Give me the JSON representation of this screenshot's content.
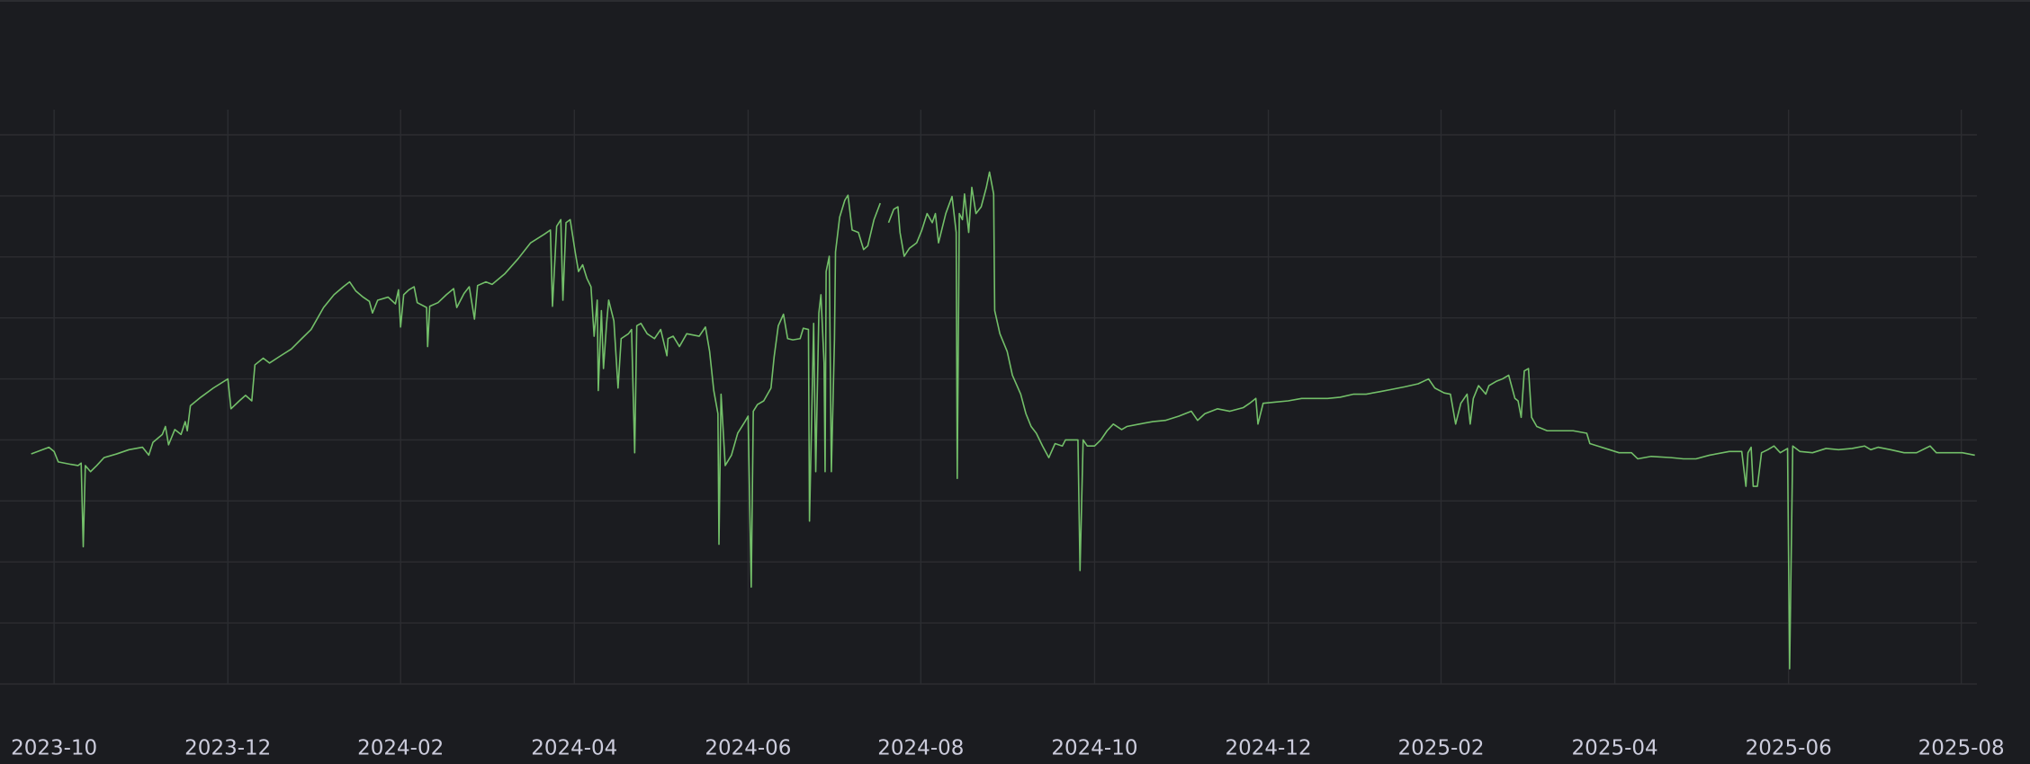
{
  "chart_data": {
    "type": "line",
    "color": "#73bf69",
    "grid": true,
    "xlim": [
      2023.698,
      2025.598
    ],
    "xticks": [
      {
        "value": 2023.75,
        "label": "2023-10"
      },
      {
        "value": 2023.917,
        "label": "2023-12"
      },
      {
        "value": 2024.083,
        "label": "2024-02"
      },
      {
        "value": 2024.25,
        "label": "2024-04"
      },
      {
        "value": 2024.417,
        "label": "2024-06"
      },
      {
        "value": 2024.583,
        "label": "2024-08"
      },
      {
        "value": 2024.75,
        "label": "2024-10"
      },
      {
        "value": 2024.917,
        "label": "2024-12"
      },
      {
        "value": 2025.083,
        "label": "2025-02"
      },
      {
        "value": 2025.25,
        "label": "2025-04"
      },
      {
        "value": 2025.417,
        "label": "2025-06"
      },
      {
        "value": 2025.583,
        "label": "2025-08"
      }
    ],
    "ylim": [
      0,
      9
    ],
    "ygrid": [
      0,
      1,
      2,
      3,
      4,
      5,
      6,
      7,
      8,
      9
    ],
    "x": [
      2023.728,
      2023.745,
      2023.75,
      2023.754,
      2023.76,
      2023.766,
      2023.773,
      2023.776,
      2023.778,
      2023.78,
      2023.785,
      2023.791,
      2023.798,
      2023.81,
      2023.822,
      2023.835,
      2023.841,
      2023.845,
      2023.854,
      2023.857,
      2023.86,
      2023.866,
      2023.872,
      2023.876,
      2023.878,
      2023.881,
      2023.891,
      2023.903,
      2023.917,
      2023.92,
      2023.928,
      2023.934,
      2023.94,
      2023.943,
      2023.951,
      2023.957,
      2023.966,
      2023.978,
      2023.988,
      2023.997,
      2024.009,
      2024.019,
      2024.028,
      2024.034,
      2024.04,
      2024.047,
      2024.053,
      2024.056,
      2024.061,
      2024.071,
      2024.078,
      2024.081,
      2024.083,
      2024.086,
      2024.091,
      2024.096,
      2024.099,
      2024.108,
      2024.109,
      2024.111,
      2024.119,
      2024.127,
      2024.134,
      2024.137,
      2024.144,
      2024.149,
      2024.154,
      2024.157,
      2024.165,
      2024.171,
      2024.183,
      2024.196,
      2024.208,
      2024.221,
      2024.227,
      2024.229,
      2024.233,
      2024.237,
      2024.239,
      2024.242,
      2024.246,
      2024.251,
      2024.254,
      2024.258,
      2024.262,
      2024.266,
      2024.269,
      2024.272,
      2024.273,
      2024.276,
      2024.278,
      2024.281,
      2024.283,
      2024.288,
      2024.292,
      2024.295,
      2024.302,
      2024.305,
      2024.308,
      2024.31,
      2024.314,
      2024.32,
      2024.327,
      2024.333,
      2024.339,
      2024.34,
      2024.345,
      2024.351,
      2024.358,
      2024.37,
      2024.376,
      2024.38,
      2024.384,
      2024.388,
      2024.389,
      2024.391,
      2024.395,
      2024.401,
      2024.407,
      2024.414,
      2024.417,
      2024.42,
      2024.422,
      2024.426,
      2024.432,
      2024.439,
      2024.442,
      2024.446,
      2024.451,
      2024.455,
      2024.46,
      2024.467,
      2024.47,
      2024.475,
      2024.476,
      2024.48,
      2024.482,
      2024.485,
      2024.487,
      2024.49,
      2024.491,
      2024.492,
      2024.495,
      2024.497,
      2024.5,
      2024.501,
      2024.505,
      2024.51,
      2024.513,
      2024.517,
      2024.523,
      2024.528,
      2024.532,
      2024.538,
      2024.544,
      2024.548,
      2024.552,
      2024.557,
      2024.561,
      2024.563,
      2024.567,
      2024.572,
      2024.579,
      2024.584,
      2024.589,
      2024.594,
      2024.597,
      2024.6,
      2024.607,
      2024.613,
      2024.617,
      2024.618,
      2024.62,
      2024.623,
      2024.625,
      2024.629,
      2024.632,
      2024.636,
      2024.641,
      2024.646,
      2024.649,
      2024.653,
      2024.654,
      2024.659,
      2024.666,
      2024.671,
      2024.679,
      2024.684,
      2024.689,
      2024.694,
      2024.7,
      2024.706,
      2024.712,
      2024.719,
      2024.722,
      2024.729,
      2024.734,
      2024.736,
      2024.739,
      2024.743,
      2024.75,
      2024.756,
      2024.762,
      2024.768,
      2024.776,
      2024.781,
      2024.793,
      2024.806,
      2024.818,
      2024.831,
      2024.843,
      2024.849,
      2024.856,
      2024.868,
      2024.88,
      2024.893,
      2024.899,
      2024.905,
      2024.907,
      2024.912,
      2024.924,
      2024.936,
      2024.949,
      2024.961,
      2024.974,
      2024.986,
      2024.999,
      2025.011,
      2025.024,
      2025.036,
      2025.048,
      2025.061,
      2025.071,
      2025.077,
      2025.086,
      2025.092,
      2025.097,
      2025.102,
      2025.108,
      2025.111,
      2025.114,
      2025.119,
      2025.126,
      2025.129,
      2025.136,
      2025.142,
      2025.148,
      2025.154,
      2025.157,
      2025.16,
      2025.163,
      2025.167,
      2025.17,
      2025.175,
      2025.185,
      2025.198,
      2025.21,
      2025.223,
      2025.226,
      2025.241,
      2025.254,
      2025.266,
      2025.272,
      2025.285,
      2025.304,
      2025.316,
      2025.328,
      2025.341,
      2025.36,
      2025.372,
      2025.376,
      2025.378,
      2025.381,
      2025.383,
      2025.387,
      2025.391,
      2025.397,
      2025.403,
      2025.409,
      2025.416,
      2025.418,
      2025.421,
      2025.428,
      2025.44,
      2025.453,
      2025.465,
      2025.478,
      2025.49,
      2025.496,
      2025.503,
      2025.515,
      2025.528,
      2025.54,
      2025.553,
      2025.559,
      2025.571,
      2025.584,
      2025.596
    ],
    "values": [
      3.77,
      3.88,
      3.81,
      3.64,
      3.62,
      3.6,
      3.58,
      3.62,
      2.25,
      3.58,
      3.48,
      3.58,
      3.71,
      3.77,
      3.84,
      3.88,
      3.75,
      3.96,
      4.09,
      4.22,
      3.92,
      4.17,
      4.09,
      4.3,
      4.15,
      4.56,
      4.7,
      4.85,
      5.0,
      4.51,
      4.64,
      4.73,
      4.64,
      5.23,
      5.34,
      5.26,
      5.36,
      5.49,
      5.66,
      5.81,
      6.17,
      6.38,
      6.51,
      6.59,
      6.44,
      6.34,
      6.27,
      6.08,
      6.29,
      6.34,
      6.23,
      6.46,
      5.85,
      6.38,
      6.46,
      6.51,
      6.25,
      6.17,
      5.53,
      6.19,
      6.25,
      6.38,
      6.48,
      6.17,
      6.4,
      6.51,
      5.98,
      6.53,
      6.59,
      6.55,
      6.72,
      6.97,
      7.23,
      7.37,
      7.44,
      6.19,
      7.5,
      7.61,
      6.29,
      7.56,
      7.61,
      7.06,
      6.76,
      6.87,
      6.65,
      6.51,
      5.7,
      6.29,
      4.81,
      6.12,
      5.17,
      5.91,
      6.29,
      5.95,
      4.85,
      5.66,
      5.74,
      5.81,
      3.79,
      5.87,
      5.91,
      5.74,
      5.66,
      5.81,
      5.38,
      5.66,
      5.7,
      5.53,
      5.74,
      5.7,
      5.85,
      5.45,
      4.81,
      4.43,
      2.29,
      4.75,
      3.58,
      3.75,
      4.11,
      4.3,
      4.39,
      1.59,
      4.47,
      4.58,
      4.64,
      4.85,
      5.36,
      5.87,
      6.06,
      5.66,
      5.64,
      5.66,
      5.83,
      5.81,
      2.67,
      5.91,
      3.48,
      6.08,
      6.38,
      5.26,
      3.48,
      6.76,
      7.01,
      3.48,
      5.64,
      7.08,
      7.65,
      7.93,
      8.01,
      7.44,
      7.4,
      7.12,
      7.18,
      7.61,
      7.88,
      null,
      7.56,
      7.78,
      7.82,
      7.4,
      7.01,
      7.14,
      7.23,
      7.44,
      7.71,
      7.56,
      7.71,
      7.23,
      7.71,
      7.99,
      7.4,
      3.37,
      7.71,
      7.61,
      8.03,
      7.4,
      8.14,
      7.71,
      7.82,
      8.14,
      8.39,
      8.03,
      6.12,
      5.74,
      5.45,
      5.06,
      4.75,
      4.43,
      4.22,
      4.11,
      3.9,
      3.71,
      3.94,
      3.9,
      4.0,
      4.0,
      4.0,
      1.86,
      4.0,
      3.9,
      3.9,
      4.0,
      4.15,
      4.26,
      4.17,
      4.22,
      4.26,
      4.3,
      4.32,
      4.39,
      4.47,
      4.32,
      4.43,
      4.51,
      4.47,
      4.53,
      4.6,
      4.68,
      4.26,
      4.6,
      4.62,
      4.64,
      4.68,
      4.68,
      4.68,
      4.7,
      4.75,
      4.75,
      4.79,
      4.83,
      4.87,
      4.92,
      5.0,
      4.85,
      4.77,
      4.75,
      4.26,
      4.6,
      4.75,
      4.26,
      4.68,
      4.89,
      4.75,
      4.89,
      4.96,
      5.0,
      5.06,
      4.68,
      4.64,
      4.37,
      5.13,
      5.17,
      4.37,
      4.22,
      4.15,
      4.15,
      4.15,
      4.11,
      3.94,
      3.86,
      3.79,
      3.79,
      3.69,
      3.73,
      3.71,
      3.69,
      3.69,
      3.75,
      3.81,
      3.81,
      3.24,
      3.79,
      3.88,
      3.24,
      3.24,
      3.79,
      3.84,
      3.9,
      3.79,
      3.86,
      0.25,
      3.9,
      3.81,
      3.79,
      3.86,
      3.84,
      3.86,
      3.9,
      3.84,
      3.88,
      3.84,
      3.79,
      3.79,
      3.9,
      3.79,
      3.79,
      3.79,
      3.75
    ]
  }
}
